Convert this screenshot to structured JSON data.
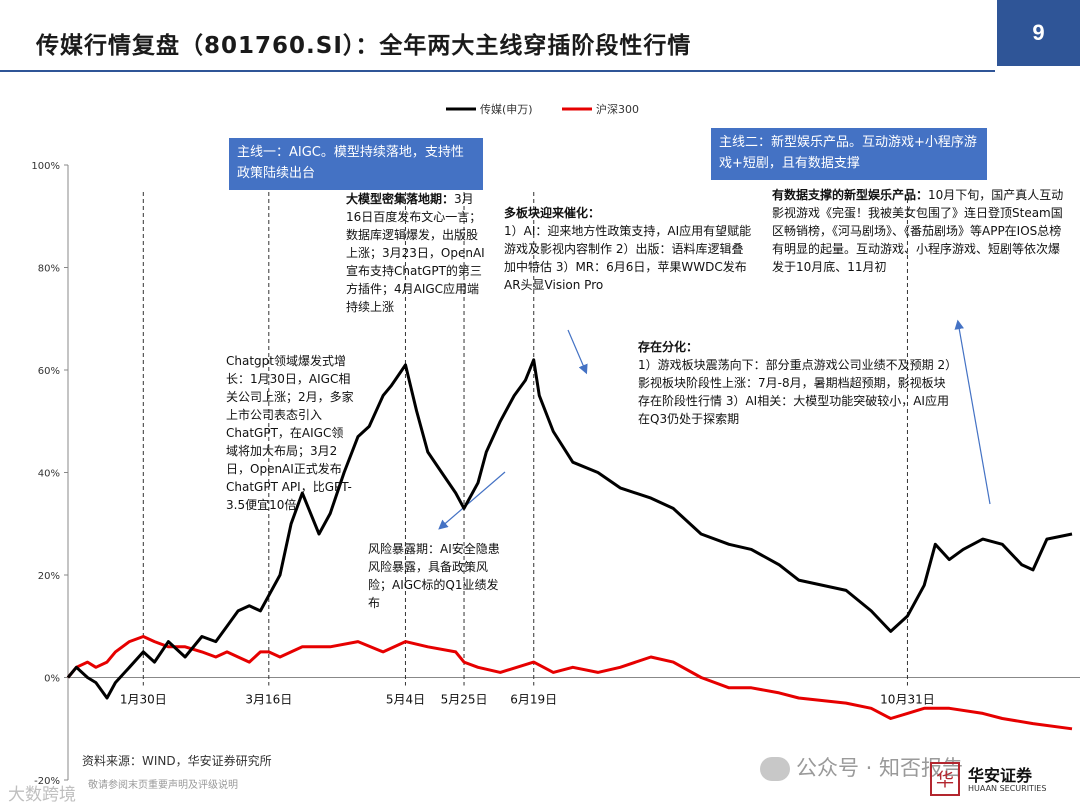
{
  "slide": {
    "title": "传媒行情复盘（801760.SI）：全年两大主线穿插阶段性行情",
    "page_number": "9"
  },
  "colors": {
    "media": "#000000",
    "hs300": "#e60000",
    "accent": "#2f5597",
    "callout": "#4472c4"
  },
  "callouts": {
    "main1": "主线一：AIGC。模型持续落地，支持性政策陆续出台",
    "main2": "主线二：新型娱乐产品。互动游戏+小程序游戏+短剧，且有数据支撑"
  },
  "annotations": {
    "chatgpt": "Chatgpt领域爆发式增长：1月30日，AIGC相关公司上涨；2月，多家上市公司表态引入ChatGPT，在AIGC领域将加大布局；3月2日，OpenAI正式发布ChatGPT API，比GPT-3.5便宜10倍",
    "llm_head": "大模型密集落地期：",
    "llm_body": "3月16日百度发布文心一言；数据库逻辑爆发，出版股上涨；3月23日，OpenAI宣布支持ChatGPT的第三方插件；4月AIGC应用端持续上涨",
    "risk": "风险暴露期：AI安全隐患风险暴露，具备政策风险；AIGC标的Q1业绩发布",
    "catalyst_head": "多板块迎来催化：",
    "catalyst_body": "1）AI：迎来地方性政策支持，AI应用有望赋能游戏及影视内容制作 2）出版：语料库逻辑叠加中特估 3）MR：6月6日，苹果WWDC发布AR头显Vision Pro",
    "diverge_head": "存在分化：",
    "diverge_body": "1）游戏板块震荡向下：部分重点游戏公司业绩不及预期 2）影视板块阶段性上涨：7月-8月，暑期档超预期，影视板块存在阶段性行情 3）AI相关：大模型功能突破较小，AI应用在Q3仍处于探索期",
    "ent_head": "有数据支撑的新型娱乐产品：",
    "ent_body": "10月下旬，国产真人互动影视游戏《完蛋！我被美女包围了》连日登顶Steam国区畅销榜，《河马剧场》、《番茄剧场》等APP在IOS总榜有明显的起量。互动游戏、小程序游戏、短剧等依次爆发于10月底、11月初"
  },
  "footer": {
    "source": "资料来源：WIND，华安证券研究所",
    "disclaimer": "敬请参阅末页重要声明及评级说明",
    "watermark_left": "大数跨境",
    "watermark_right": "公众号 · 知否报告",
    "logo_mark": "华",
    "logo_text": "华安证券",
    "logo_sub": "HUAAN SECURITIES"
  },
  "chart_data": {
    "type": "line",
    "x_type": "date",
    "y_unit": "%",
    "ylim": [
      -20,
      100
    ],
    "yticks": [
      "-20%",
      "0%",
      "20%",
      "40%",
      "60%",
      "80%",
      "100%"
    ],
    "ytick_values": [
      -20,
      0,
      20,
      40,
      60,
      80,
      100
    ],
    "legend_position": "top-center",
    "grid": false,
    "event_markers": [
      {
        "date": "2023-01-30",
        "label": "1月30日"
      },
      {
        "date": "2023-03-16",
        "label": "3月16日"
      },
      {
        "date": "2023-05-04",
        "label": "5月4日"
      },
      {
        "date": "2023-05-25",
        "label": "5月25日"
      },
      {
        "date": "2023-06-19",
        "label": "6月19日"
      },
      {
        "date": "2023-10-31",
        "label": "10月31日"
      }
    ],
    "series": [
      {
        "name": "传媒(申万)",
        "color": "#000000",
        "points": [
          [
            "2023-01-03",
            0
          ],
          [
            "2023-01-06",
            2
          ],
          [
            "2023-01-10",
            0
          ],
          [
            "2023-01-13",
            -1
          ],
          [
            "2023-01-17",
            -4
          ],
          [
            "2023-01-20",
            -1
          ],
          [
            "2023-01-25",
            2
          ],
          [
            "2023-01-30",
            5
          ],
          [
            "2023-02-03",
            3
          ],
          [
            "2023-02-08",
            7
          ],
          [
            "2023-02-14",
            4
          ],
          [
            "2023-02-20",
            8
          ],
          [
            "2023-02-25",
            7
          ],
          [
            "2023-03-01",
            10
          ],
          [
            "2023-03-05",
            13
          ],
          [
            "2023-03-09",
            14
          ],
          [
            "2023-03-13",
            13
          ],
          [
            "2023-03-16",
            16
          ],
          [
            "2023-03-20",
            20
          ],
          [
            "2023-03-24",
            30
          ],
          [
            "2023-03-28",
            36
          ],
          [
            "2023-04-03",
            28
          ],
          [
            "2023-04-07",
            32
          ],
          [
            "2023-04-12",
            40
          ],
          [
            "2023-04-17",
            47
          ],
          [
            "2023-04-21",
            49
          ],
          [
            "2023-04-26",
            55
          ],
          [
            "2023-04-29",
            57
          ],
          [
            "2023-05-04",
            61
          ],
          [
            "2023-05-08",
            52
          ],
          [
            "2023-05-12",
            44
          ],
          [
            "2023-05-17",
            40
          ],
          [
            "2023-05-22",
            36
          ],
          [
            "2023-05-25",
            33
          ],
          [
            "2023-05-30",
            38
          ],
          [
            "2023-06-02",
            44
          ],
          [
            "2023-06-07",
            50
          ],
          [
            "2023-06-12",
            55
          ],
          [
            "2023-06-16",
            58
          ],
          [
            "2023-06-19",
            62
          ],
          [
            "2023-06-21",
            55
          ],
          [
            "2023-06-26",
            48
          ],
          [
            "2023-07-03",
            42
          ],
          [
            "2023-07-12",
            40
          ],
          [
            "2023-07-20",
            37
          ],
          [
            "2023-07-31",
            35
          ],
          [
            "2023-08-08",
            33
          ],
          [
            "2023-08-18",
            28
          ],
          [
            "2023-08-28",
            26
          ],
          [
            "2023-09-05",
            25
          ],
          [
            "2023-09-15",
            22
          ],
          [
            "2023-09-22",
            19
          ],
          [
            "2023-10-09",
            17
          ],
          [
            "2023-10-18",
            13
          ],
          [
            "2023-10-25",
            9
          ],
          [
            "2023-10-31",
            12
          ],
          [
            "2023-11-06",
            18
          ],
          [
            "2023-11-10",
            26
          ],
          [
            "2023-11-15",
            23
          ],
          [
            "2023-11-20",
            25
          ],
          [
            "2023-11-27",
            27
          ],
          [
            "2023-12-04",
            26
          ],
          [
            "2023-12-11",
            22
          ],
          [
            "2023-12-15",
            21
          ],
          [
            "2023-12-20",
            27
          ],
          [
            "2023-12-29",
            28
          ]
        ]
      },
      {
        "name": "沪深300",
        "color": "#e60000",
        "points": [
          [
            "2023-01-03",
            0
          ],
          [
            "2023-01-06",
            2
          ],
          [
            "2023-01-10",
            3
          ],
          [
            "2023-01-13",
            2
          ],
          [
            "2023-01-17",
            3
          ],
          [
            "2023-01-20",
            5
          ],
          [
            "2023-01-25",
            7
          ],
          [
            "2023-01-30",
            8
          ],
          [
            "2023-02-03",
            7
          ],
          [
            "2023-02-08",
            6
          ],
          [
            "2023-02-14",
            6
          ],
          [
            "2023-02-20",
            5
          ],
          [
            "2023-02-25",
            4
          ],
          [
            "2023-03-01",
            5
          ],
          [
            "2023-03-05",
            4
          ],
          [
            "2023-03-09",
            3
          ],
          [
            "2023-03-13",
            5
          ],
          [
            "2023-03-16",
            5
          ],
          [
            "2023-03-20",
            4
          ],
          [
            "2023-03-28",
            6
          ],
          [
            "2023-04-07",
            6
          ],
          [
            "2023-04-17",
            7
          ],
          [
            "2023-04-26",
            5
          ],
          [
            "2023-05-04",
            7
          ],
          [
            "2023-05-12",
            6
          ],
          [
            "2023-05-22",
            5
          ],
          [
            "2023-05-25",
            3
          ],
          [
            "2023-05-30",
            2
          ],
          [
            "2023-06-07",
            1
          ],
          [
            "2023-06-19",
            3
          ],
          [
            "2023-06-26",
            1
          ],
          [
            "2023-07-03",
            2
          ],
          [
            "2023-07-12",
            1
          ],
          [
            "2023-07-20",
            2
          ],
          [
            "2023-07-31",
            4
          ],
          [
            "2023-08-08",
            3
          ],
          [
            "2023-08-18",
            0
          ],
          [
            "2023-08-28",
            -2
          ],
          [
            "2023-09-05",
            -2
          ],
          [
            "2023-09-15",
            -3
          ],
          [
            "2023-09-22",
            -4
          ],
          [
            "2023-10-09",
            -5
          ],
          [
            "2023-10-18",
            -6
          ],
          [
            "2023-10-25",
            -8
          ],
          [
            "2023-10-31",
            -7
          ],
          [
            "2023-11-06",
            -6
          ],
          [
            "2023-11-15",
            -6
          ],
          [
            "2023-11-27",
            -7
          ],
          [
            "2023-12-04",
            -8
          ],
          [
            "2023-12-15",
            -9
          ],
          [
            "2023-12-29",
            -10
          ]
        ]
      }
    ]
  }
}
